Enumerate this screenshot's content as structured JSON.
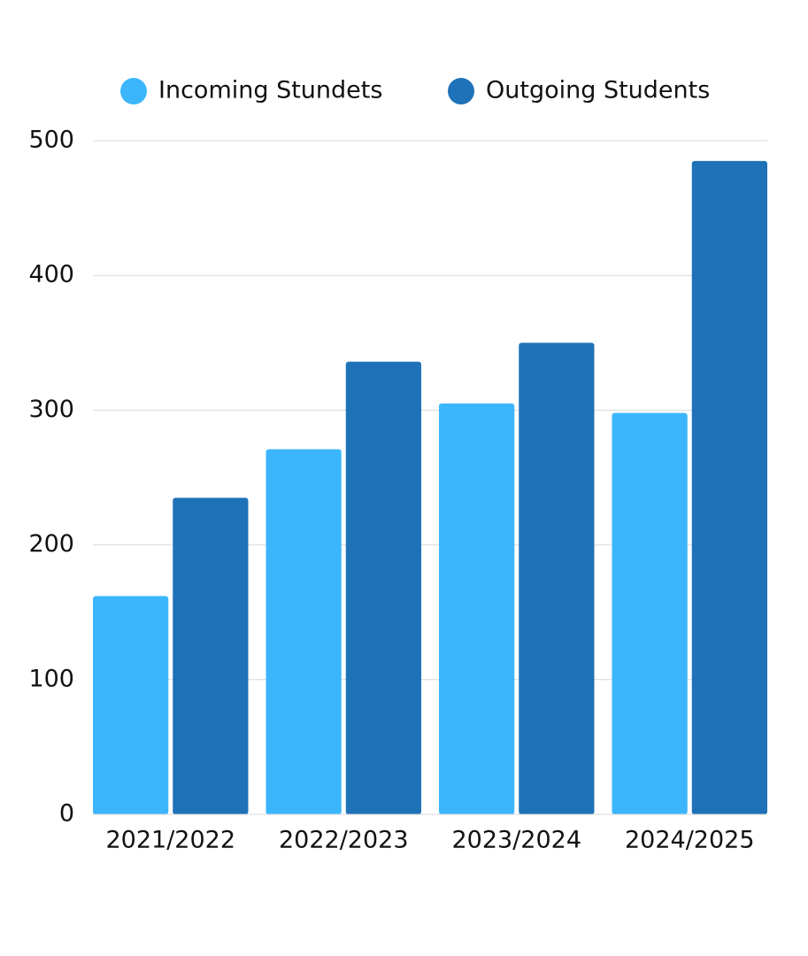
{
  "chart_data": {
    "type": "bar",
    "categories": [
      "2021/2022",
      "2022/2023",
      "2023/2024",
      "2024/2025"
    ],
    "series": [
      {
        "name": "Incoming Stundets",
        "color": "#3bb6fd",
        "values": [
          162,
          271,
          305,
          298
        ]
      },
      {
        "name": "Outgoing Students",
        "color": "#1f72b8",
        "values": [
          235,
          336,
          350,
          485
        ]
      }
    ],
    "ylim": [
      0,
      500
    ],
    "yticks": [
      0,
      100,
      200,
      300,
      400,
      500
    ],
    "grid": true,
    "legend": "top"
  }
}
